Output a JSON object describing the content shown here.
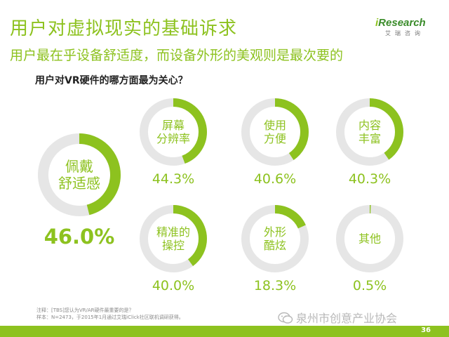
{
  "title": "用户对虚拟现实的基础诉求",
  "subtitle": "用户最在乎设备舒适度，而设备外形的美观则是最次要的",
  "question": "用户对VR硬件的哪方面最为关心？",
  "logo": {
    "main": "iResearch",
    "sub": "艾瑞咨询"
  },
  "colors": {
    "accent": "#8dc21f",
    "track": "#e6e6e6"
  },
  "items": [
    {
      "line1": "佩戴",
      "line2": "舒适感",
      "value": "46.0%",
      "fraction": 0.46
    },
    {
      "line1": "屏幕",
      "line2": "分辨率",
      "value": "44.3%",
      "fraction": 0.443
    },
    {
      "line1": "使用",
      "line2": "方便",
      "value": "40.6%",
      "fraction": 0.406
    },
    {
      "line1": "内容",
      "line2": "丰富",
      "value": "40.3%",
      "fraction": 0.403
    },
    {
      "line1": "精准的",
      "line2": "操控",
      "value": "40.0%",
      "fraction": 0.4
    },
    {
      "line1": "外形",
      "line2": "酷炫",
      "value": "18.3%",
      "fraction": 0.183
    },
    {
      "line1": "其他",
      "line2": "",
      "value": "0.5%",
      "fraction": 0.005
    }
  ],
  "footnote": {
    "line1": "注释：[TBS]您认为VR/AR硬件最重要的是？",
    "line2": "样本：N=2473，于2015年1月通过艾瑞iClick社区联机调研获得。"
  },
  "watermark": "泉州市创意产业协会",
  "page_number": "36"
}
